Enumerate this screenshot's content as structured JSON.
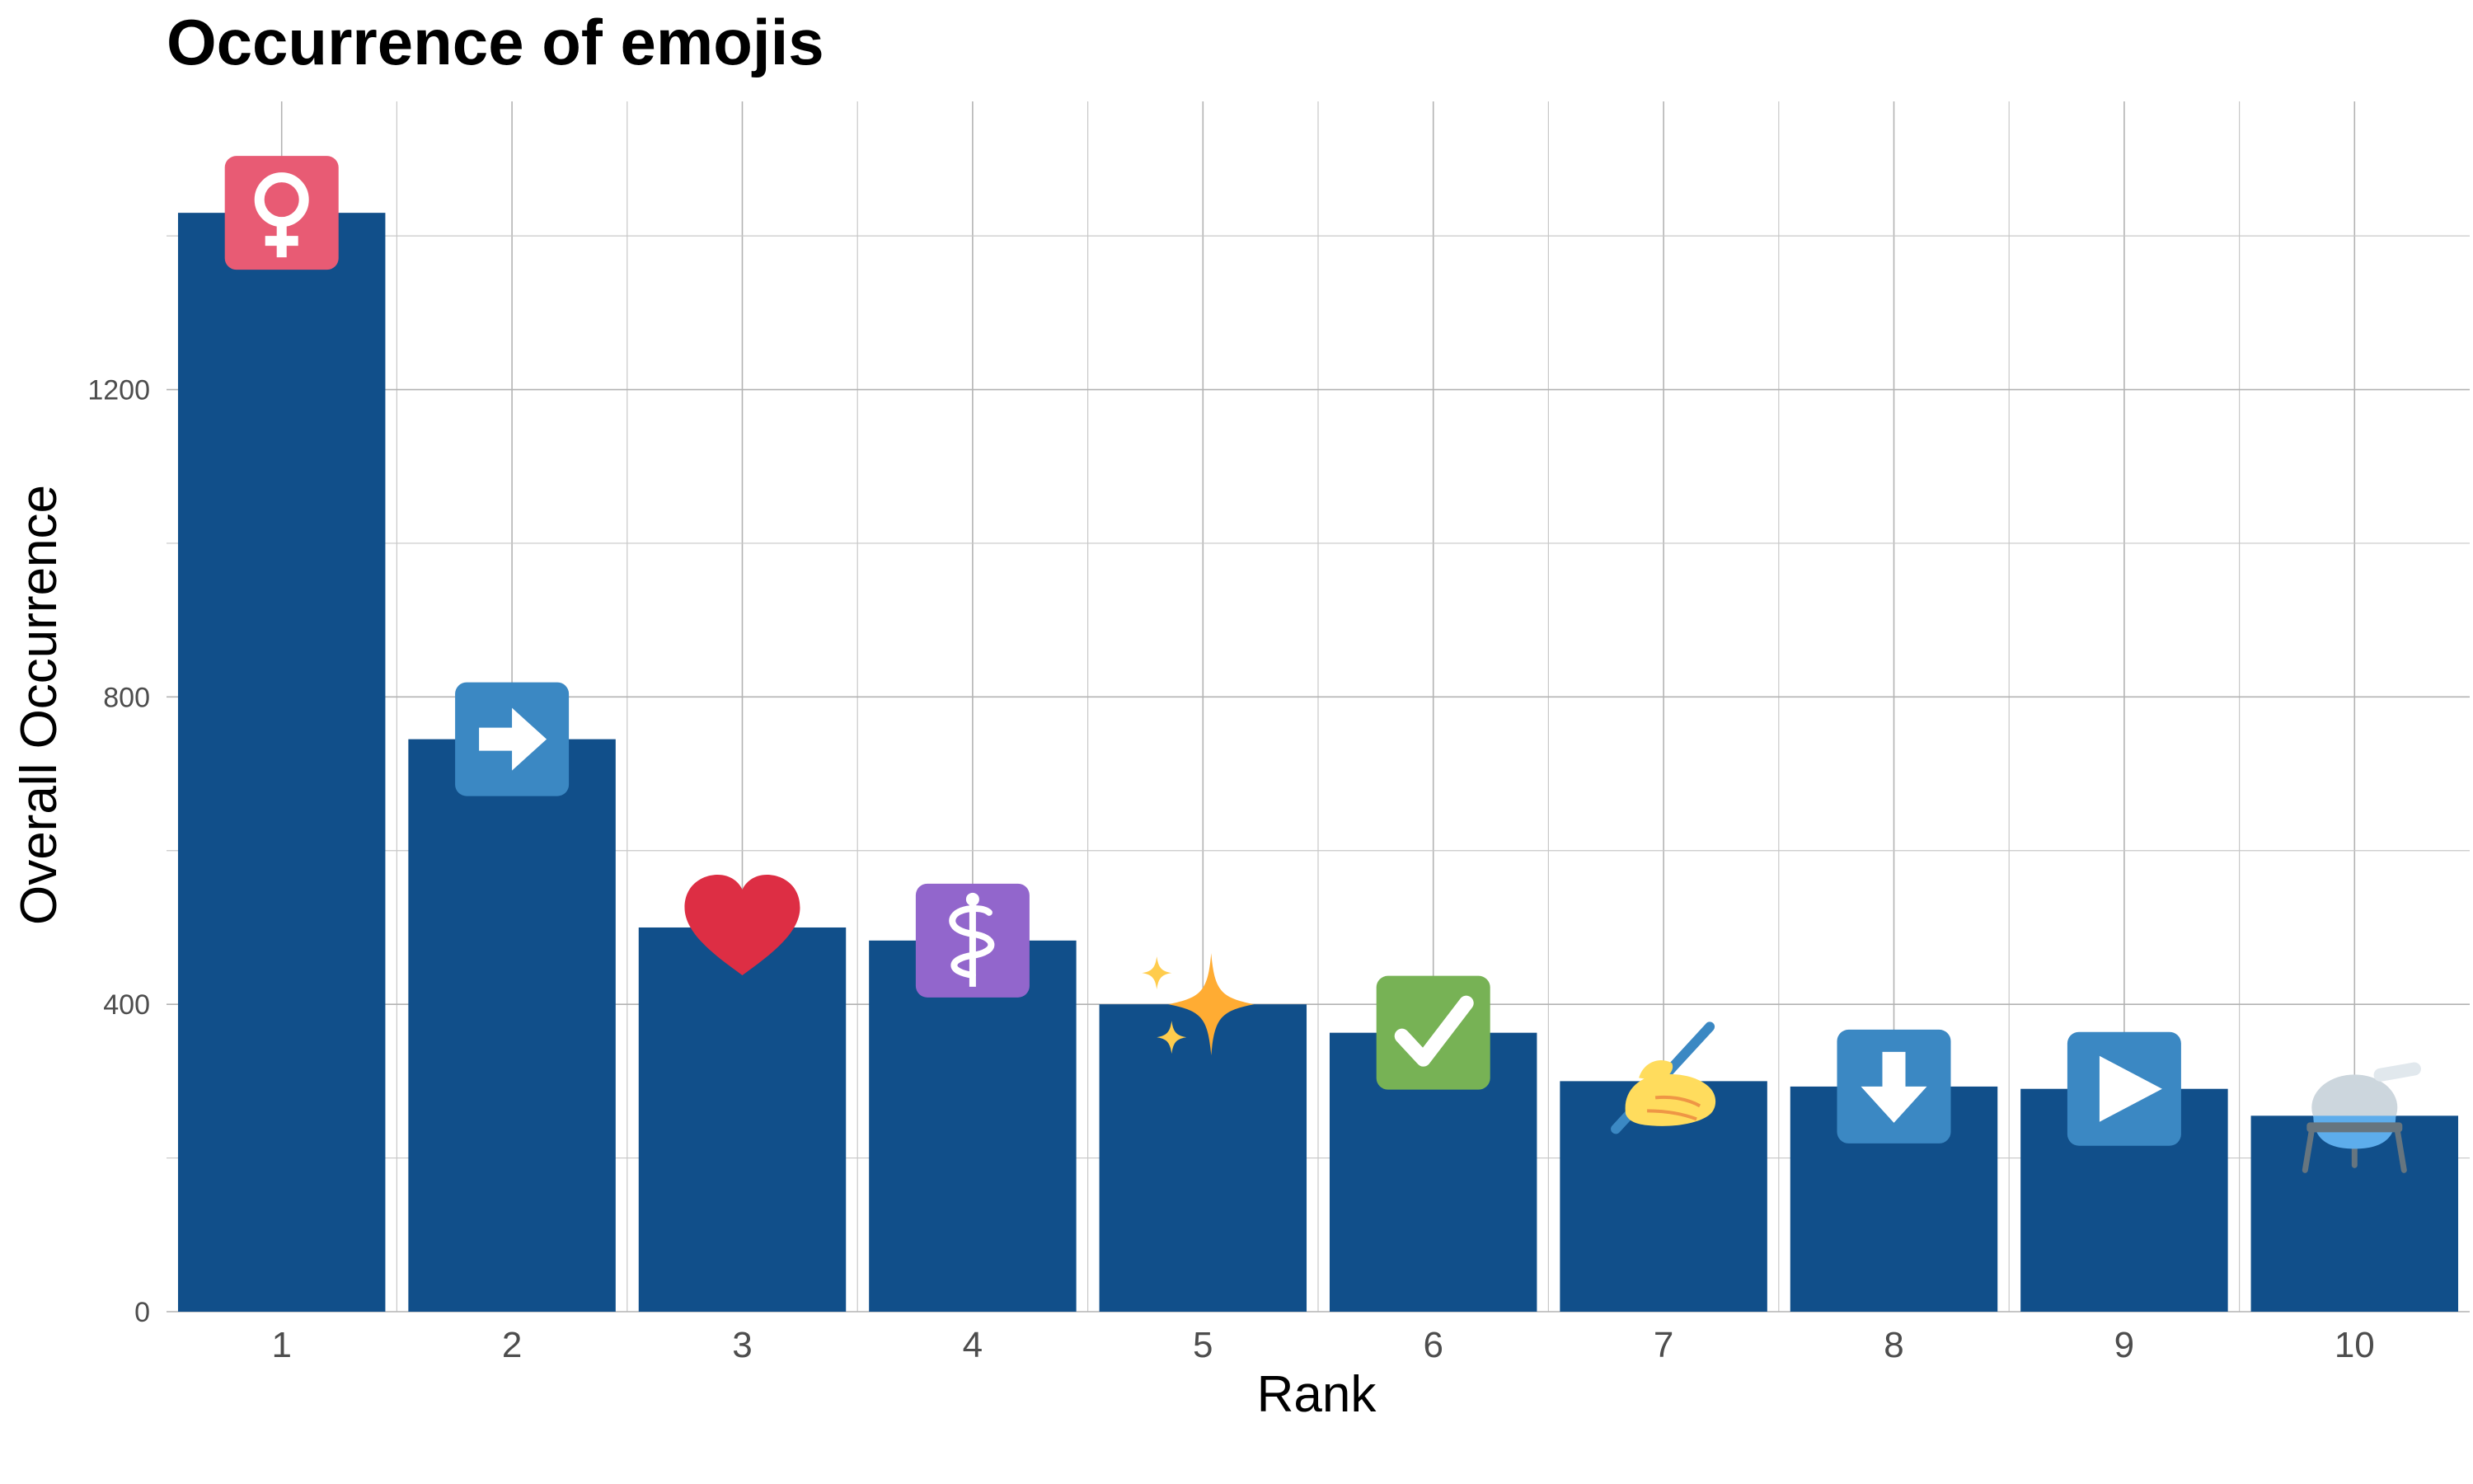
{
  "chart_data": {
    "type": "bar",
    "title": "Occurrence of emojis",
    "xlabel": "Rank",
    "ylabel": "Overall Occurrence",
    "categories": [
      "1",
      "2",
      "3",
      "4",
      "5",
      "6",
      "7",
      "8",
      "9",
      "10"
    ],
    "values": [
      1430,
      745,
      500,
      483,
      400,
      363,
      300,
      293,
      290,
      255
    ],
    "icons": [
      "female-sign-icon",
      "right-arrow-icon",
      "red-heart-icon",
      "medical-symbol-icon",
      "sparkles-icon",
      "check-mark-button-icon",
      "writing-hand-icon",
      "down-arrow-icon",
      "play-button-icon",
      "test-tube-flask-icon"
    ],
    "yticks": [
      0,
      400,
      800,
      1200
    ],
    "ylim": [
      0,
      1575
    ],
    "grid": true,
    "bar_color": "#114f8a",
    "grid_color": "#b3b3b3"
  }
}
